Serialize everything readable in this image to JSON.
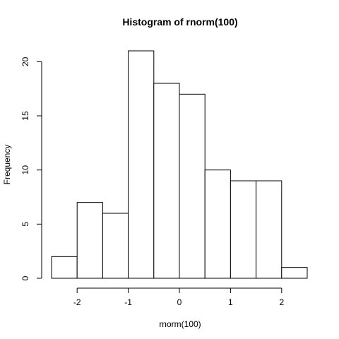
{
  "chart_data": {
    "type": "bar",
    "title": "Histogram of rnorm(100)",
    "xlabel": "rnorm(100)",
    "ylabel": "Frequency",
    "bins": [
      {
        "x0": -2.5,
        "x1": -2.0,
        "count": 2
      },
      {
        "x0": -2.0,
        "x1": -1.5,
        "count": 7
      },
      {
        "x0": -1.5,
        "x1": -1.0,
        "count": 6
      },
      {
        "x0": -1.0,
        "x1": -0.5,
        "count": 21
      },
      {
        "x0": -0.5,
        "x1": 0.0,
        "count": 18
      },
      {
        "x0": 0.0,
        "x1": 0.5,
        "count": 17
      },
      {
        "x0": 0.5,
        "x1": 1.0,
        "count": 10
      },
      {
        "x0": 1.0,
        "x1": 1.5,
        "count": 9
      },
      {
        "x0": 1.5,
        "x1": 2.0,
        "count": 9
      },
      {
        "x0": 2.0,
        "x1": 2.5,
        "count": 1
      }
    ],
    "xticks": [
      -2,
      -1,
      0,
      1,
      2
    ],
    "xtick_labels": [
      "-2",
      "-1",
      "0",
      "1",
      "2"
    ],
    "yticks": [
      0,
      5,
      10,
      15,
      20
    ],
    "ytick_labels": [
      "0",
      "5",
      "10",
      "15",
      "20"
    ],
    "xlim": [
      -2.5,
      2.5
    ],
    "ylim": [
      0,
      21
    ],
    "grid": false,
    "colors": {
      "bar_fill": "#ffffff",
      "bar_stroke": "#000000"
    }
  }
}
